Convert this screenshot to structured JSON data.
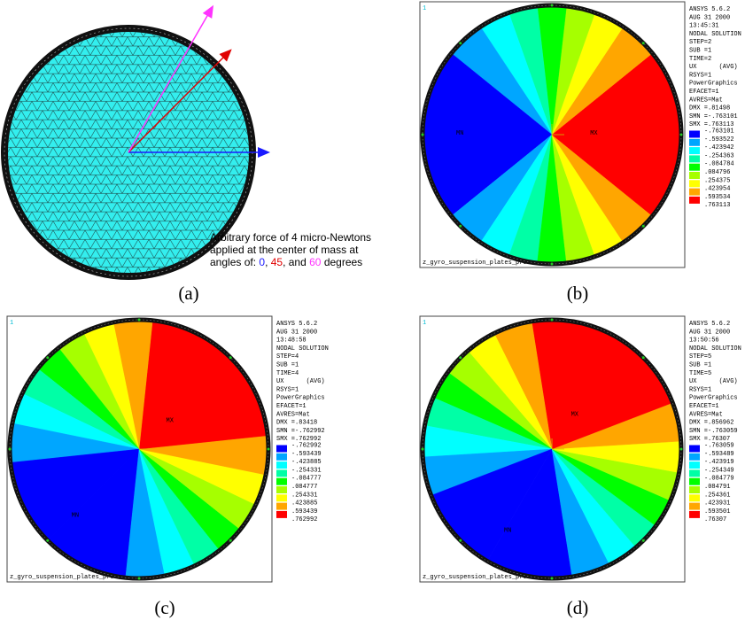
{
  "panel_a": {
    "annotation": [
      "Arbitrary force of 4 micro-Newtons",
      "applied at the center of mass at"
    ],
    "angles_line": {
      "prefix": "angles of: ",
      "angles": [
        "0",
        "45",
        "60"
      ],
      "separators": [
        ", ",
        ", and "
      ],
      "suffix": " degrees",
      "angle_colors": [
        "#1a1aff",
        "#e00000",
        "#ff33ff"
      ]
    },
    "caption": "(a)"
  },
  "legend_colors": [
    "#0000ff",
    "#00a6ff",
    "#00ffff",
    "#00ffa6",
    "#00ff00",
    "#a6ff00",
    "#ffff00",
    "#ffa600",
    "#ff0000"
  ],
  "plots": [
    {
      "window": "1",
      "caption": "(b)",
      "footer": "z_gyro_suspension_plates_proofmass",
      "markers": [
        "MN",
        "MX"
      ],
      "header": [
        "ANSYS 5.6.2",
        "AUG 31 2000",
        "13:45:31",
        "NODAL SOLUTION",
        "STEP=2",
        "SUB =1",
        "TIME=2",
        "UX      (AVG)",
        "RSYS=1",
        "PowerGraphics",
        "EFACET=1",
        "AVRES=Mat",
        "DMX =.81498",
        "SMN =-.763101",
        "SMX =.763113"
      ],
      "levels": [
        "-.763101",
        "-.593522",
        "-.423942",
        "-.254363",
        "-.084784",
        ".084796",
        ".254375",
        ".423954",
        ".593534",
        ".763113"
      ]
    },
    {
      "window": "1",
      "caption": "(c)",
      "footer": "z_gyro_suspension_plates_proofmass",
      "markers": [
        "MN",
        "MX"
      ],
      "header": [
        "ANSYS 5.6.2",
        "AUG 31 2000",
        "13:48:58",
        "NODAL SOLUTION",
        "STEP=4",
        "SUB =1",
        "TIME=4",
        "UX      (AVG)",
        "RSYS=1",
        "PowerGraphics",
        "EFACET=1",
        "AVRES=Mat",
        "DMX =.83418",
        "SMN =-.762992",
        "SMX =.762992"
      ],
      "levels": [
        "-.762992",
        "-.593439",
        "-.423885",
        "-.254331",
        "-.084777",
        ".084777",
        ".254331",
        ".423885",
        ".593439",
        ".762992"
      ]
    },
    {
      "window": "1",
      "caption": "(d)",
      "footer": "z_gyro_suspension_plates_proofmass",
      "markers": [
        "MN",
        "MX"
      ],
      "header": [
        "ANSYS 5.6.2",
        "AUG 31 2000",
        "13:50:56",
        "NODAL SOLUTION",
        "STEP=5",
        "SUB =1",
        "TIME=5",
        "UX      (AVG)",
        "RSYS=1",
        "PowerGraphics",
        "EFACET=1",
        "AVRES=Mat",
        "DMX =.856962",
        "SMN =-.763059",
        "SMX =.76307"
      ],
      "levels": [
        "-.763059",
        "-.593489",
        "-.423919",
        "-.254349",
        "-.084779",
        ".084791",
        ".254361",
        ".423931",
        ".593501",
        ".76307"
      ]
    }
  ]
}
